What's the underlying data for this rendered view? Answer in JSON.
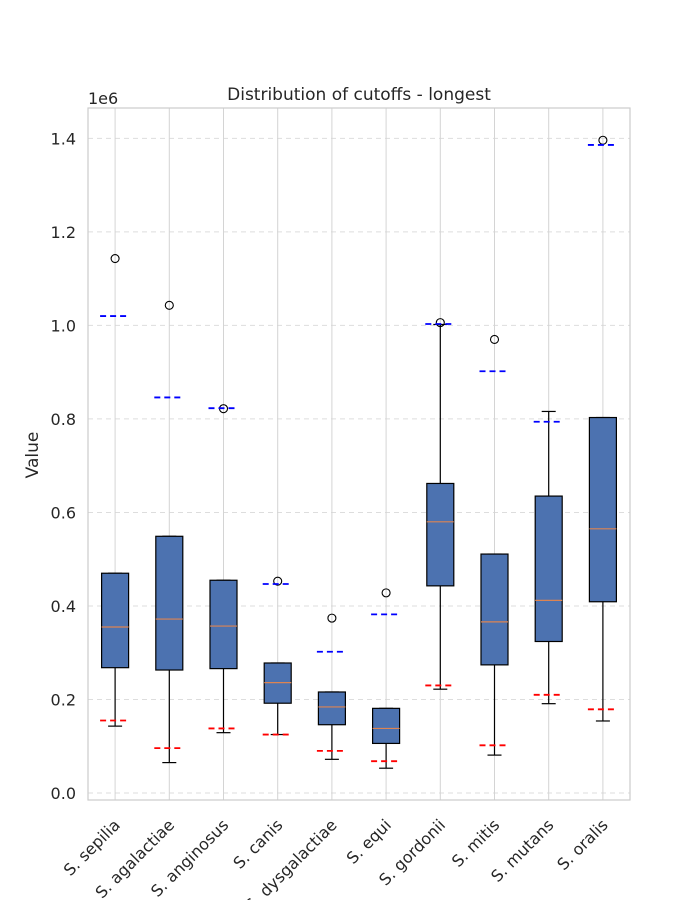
{
  "chart_data": {
    "type": "box",
    "title": "Distribution of cutoffs - longest",
    "xlabel": "",
    "ylabel": "Value",
    "y_offset_label": "1e6",
    "ylim": [
      -0.015,
      1.465
    ],
    "yticks": [
      0.0,
      0.2,
      0.4,
      0.6,
      0.8,
      1.0,
      1.2,
      1.4
    ],
    "ytick_labels": [
      "0.0",
      "0.2",
      "0.4",
      "0.6",
      "0.8",
      "1.0",
      "1.2",
      "1.4"
    ],
    "grid": true,
    "box_color": "#4c72b0",
    "median_color": "#dd8452",
    "upper_ref_color": "#0000ff",
    "lower_ref_color": "#ff0000",
    "categories": [
      "S. sepilia",
      "S. agalactiae",
      "S. anginosus",
      "S. canis",
      "S. dysgalactiae",
      "S. equi",
      "S. gordonii",
      "S. mitis",
      "S. mutans",
      "S. oralis"
    ],
    "x_tick_labels": [
      "S. sepilia",
      "S. agalactiae",
      "S. anginosus",
      "S. canis",
      "S. dysgalactiae",
      "S. equi",
      "S. gordonii",
      "S. mitis",
      "S. mutans",
      "S. oralis"
    ],
    "boxes": [
      {
        "whislo": 0.143,
        "q1": 0.268,
        "med": 0.355,
        "q3": 0.47,
        "whishi": 0.47,
        "fliers": [
          1.143
        ],
        "upper_ref": 1.02,
        "lower_ref": 0.155
      },
      {
        "whislo": 0.065,
        "q1": 0.263,
        "med": 0.372,
        "q3": 0.549,
        "whishi": 0.549,
        "fliers": [
          1.043
        ],
        "upper_ref": 0.846,
        "lower_ref": 0.096
      },
      {
        "whislo": 0.129,
        "q1": 0.266,
        "med": 0.357,
        "q3": 0.455,
        "whishi": 0.455,
        "fliers": [
          0.822
        ],
        "upper_ref": 0.823,
        "lower_ref": 0.138
      },
      {
        "whislo": 0.125,
        "q1": 0.192,
        "med": 0.236,
        "q3": 0.278,
        "whishi": 0.278,
        "fliers": [
          0.453
        ],
        "upper_ref": 0.447,
        "lower_ref": 0.125
      },
      {
        "whislo": 0.072,
        "q1": 0.146,
        "med": 0.184,
        "q3": 0.216,
        "whishi": 0.216,
        "fliers": [
          0.374
        ],
        "upper_ref": 0.302,
        "lower_ref": 0.09
      },
      {
        "whislo": 0.053,
        "q1": 0.106,
        "med": 0.138,
        "q3": 0.181,
        "whishi": 0.181,
        "fliers": [
          0.428
        ],
        "upper_ref": 0.382,
        "lower_ref": 0.068
      },
      {
        "whislo": 0.222,
        "q1": 0.443,
        "med": 0.58,
        "q3": 0.662,
        "whishi": 1.002,
        "fliers": [
          1.006
        ],
        "upper_ref": 1.003,
        "lower_ref": 0.23
      },
      {
        "whislo": 0.081,
        "q1": 0.274,
        "med": 0.366,
        "q3": 0.511,
        "whishi": 0.511,
        "fliers": [
          0.97
        ],
        "upper_ref": 0.902,
        "lower_ref": 0.102
      },
      {
        "whislo": 0.191,
        "q1": 0.324,
        "med": 0.412,
        "q3": 0.635,
        "whishi": 0.816,
        "fliers": [],
        "upper_ref": 0.794,
        "lower_ref": 0.21
      },
      {
        "whislo": 0.154,
        "q1": 0.409,
        "med": 0.565,
        "q3": 0.803,
        "whishi": 0.803,
        "fliers": [
          1.396
        ],
        "upper_ref": 1.386,
        "lower_ref": 0.179
      }
    ]
  }
}
